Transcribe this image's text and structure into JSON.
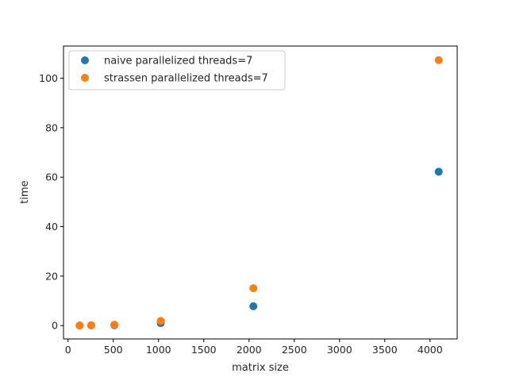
{
  "chart_data": {
    "type": "scatter",
    "title": "",
    "xlabel": "matrix size",
    "ylabel": "time",
    "xlim": [
      -50,
      4300
    ],
    "ylim": [
      -5.4,
      113
    ],
    "xticks": [
      0,
      500,
      1000,
      1500,
      2000,
      2500,
      3000,
      3500,
      4000
    ],
    "yticks": [
      0,
      20,
      40,
      60,
      80,
      100
    ],
    "grid": false,
    "legend_position": "top-left",
    "series": [
      {
        "name": "naive parallelized threads=7",
        "color": "#1f77b4",
        "x": [
          128,
          256,
          512,
          1024,
          2048,
          4096
        ],
        "y": [
          0.02,
          0.08,
          0.15,
          1.0,
          7.8,
          62.2
        ]
      },
      {
        "name": "strassen parallelized threads=7",
        "color": "#ff7f0e",
        "x": [
          128,
          256,
          512,
          1024,
          2048,
          4096
        ],
        "y": [
          0.04,
          0.12,
          0.35,
          1.9,
          15.1,
          107.3
        ]
      }
    ]
  }
}
